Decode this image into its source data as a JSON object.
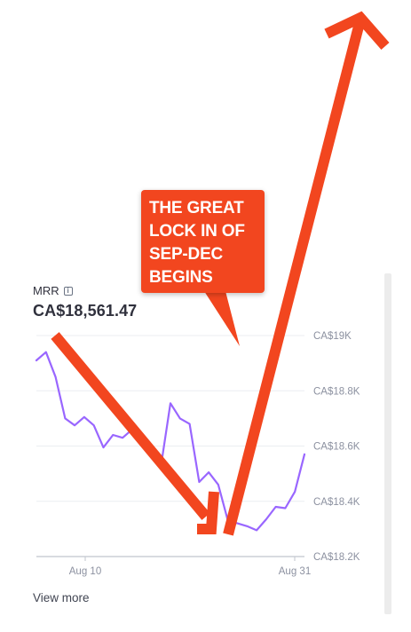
{
  "metric": {
    "label": "MRR",
    "info_icon": "info-icon",
    "value": "CA$18,561.47"
  },
  "view_more": "View more",
  "annotation": {
    "text": "THE GREAT\nLOCK IN OF\nSEP-DEC\nBEGINS",
    "color": "#f2461f"
  },
  "colors": {
    "line": "#9966ff",
    "grid": "#ebeef1",
    "arrow": "#f2461f"
  },
  "chart_data": {
    "type": "line",
    "title": "",
    "xlabel": "",
    "ylabel": "",
    "x_ticks": [
      "Aug 10",
      "Aug 31"
    ],
    "y_ticks": [
      "CA$18.2K",
      "CA$18.4K",
      "CA$18.6K",
      "CA$18.8K",
      "CA$19K"
    ],
    "y_tick_values": [
      18200,
      18400,
      18600,
      18800,
      19000
    ],
    "ylim": [
      18200,
      19000
    ],
    "grid": true,
    "legend": "none",
    "series": [
      {
        "values": [
          18910,
          18940,
          18850,
          18700,
          18675,
          18705,
          18675,
          18595,
          18640,
          18630,
          18660,
          18615,
          18560,
          18525,
          18755,
          18700,
          18680,
          18470,
          18505,
          18460,
          18330,
          18320,
          18310,
          18295,
          18335,
          18380,
          18375,
          18435,
          18570
        ]
      }
    ]
  }
}
